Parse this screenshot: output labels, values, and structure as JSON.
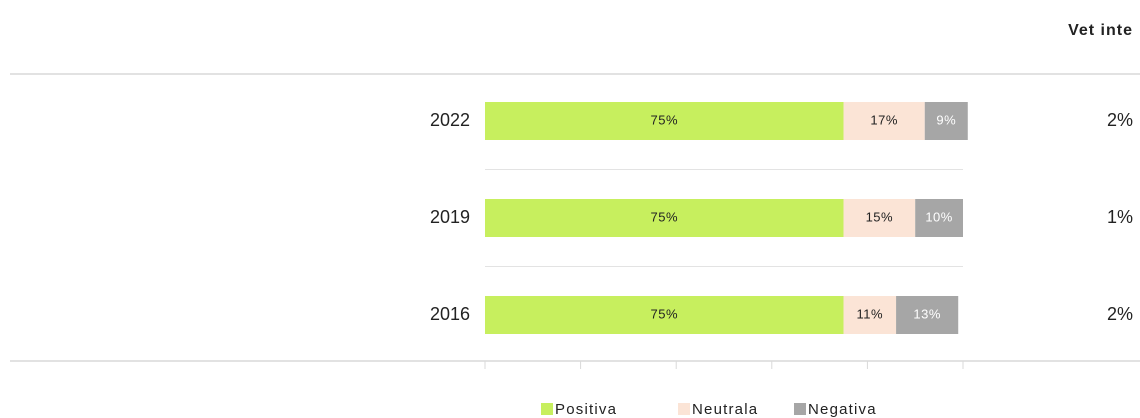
{
  "chart_data": {
    "type": "stacked-bar-horizontal",
    "categories": [
      "2022",
      "2019",
      "2016"
    ],
    "series": [
      {
        "name": "Positiva",
        "color": "#c7ef5e",
        "values": [
          75,
          75,
          75
        ],
        "value_labels": [
          "75%",
          "75%",
          "75%"
        ]
      },
      {
        "name": "Neutrala",
        "color": "#fbe4d6",
        "values": [
          17,
          15,
          11
        ],
        "value_labels": [
          "17%",
          "15%",
          "11%"
        ]
      },
      {
        "name": "Negativa",
        "color": "#a6a6a6",
        "values": [
          9,
          10,
          13
        ],
        "value_labels": [
          "9%",
          "10%",
          "13%"
        ]
      }
    ],
    "xlim": [
      0,
      100
    ],
    "xticks": [
      0,
      20,
      40,
      60,
      80,
      100
    ],
    "side_column": {
      "title": "Vet inte",
      "values": [
        2,
        1,
        2
      ],
      "value_labels": [
        "2%",
        "1%",
        "2%"
      ]
    }
  }
}
